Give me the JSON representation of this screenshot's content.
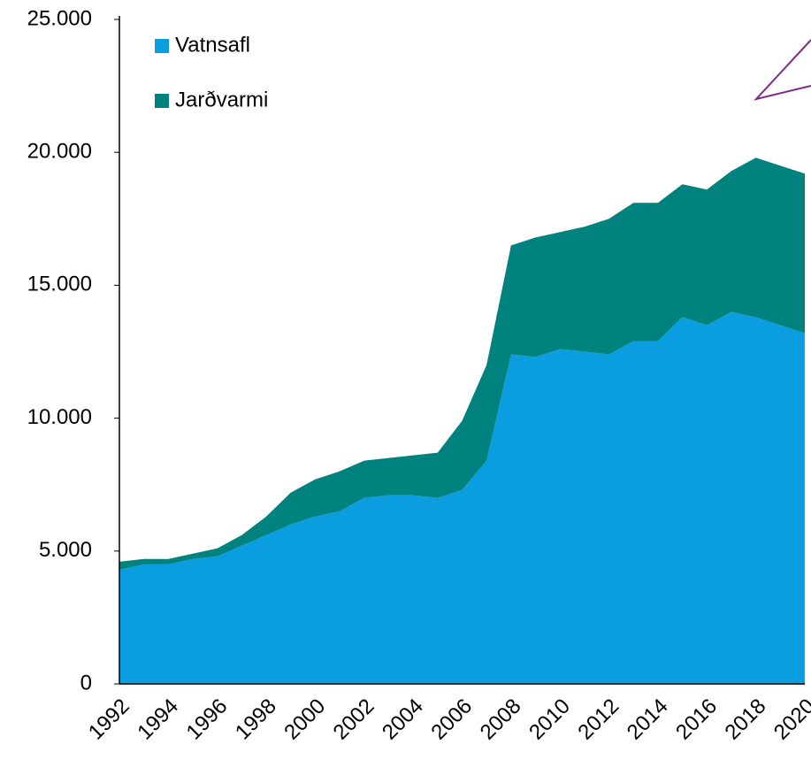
{
  "chart_data": {
    "type": "stacked_area",
    "categories": [
      "1992",
      null,
      "1994",
      null,
      "1996",
      null,
      "1998",
      null,
      "2000",
      null,
      "2002",
      null,
      "2004",
      null,
      "2006",
      null,
      "2008",
      null,
      "2010",
      null,
      "2012",
      null,
      "2014",
      null,
      "2016",
      null,
      "2018",
      null,
      "2020"
    ],
    "series": [
      {
        "name": "Vatnsafl",
        "color": "#0a9de0",
        "values": [
          4300,
          4500,
          4500,
          4700,
          4800,
          5200,
          5600,
          6000,
          6300,
          6500,
          7000,
          7100,
          7100,
          7000,
          7300,
          8400,
          12400,
          12300,
          12600,
          12500,
          12400,
          12900,
          12900,
          13800,
          13500,
          14000,
          13800,
          13500,
          13200
        ]
      },
      {
        "name": "Jarðvarmi",
        "color": "#00827f",
        "values": [
          300,
          200,
          200,
          200,
          300,
          400,
          700,
          1200,
          1400,
          1500,
          1400,
          1400,
          1500,
          1700,
          2600,
          3600,
          4100,
          4500,
          4400,
          4700,
          5100,
          5200,
          5200,
          5000,
          5100,
          5300,
          6000,
          6000,
          6000
        ]
      }
    ],
    "ylim": [
      0,
      25000
    ],
    "yticks": [
      0,
      {
        "value": 5000,
        "label": "5.000"
      },
      {
        "value": 10000,
        "label": "10.000"
      },
      {
        "value": 15000,
        "label": "15.000"
      },
      {
        "value": 20000,
        "label": "20.000"
      },
      {
        "value": 25000,
        "label": "25.000"
      }
    ],
    "grid": false,
    "legend": "upper left"
  }
}
